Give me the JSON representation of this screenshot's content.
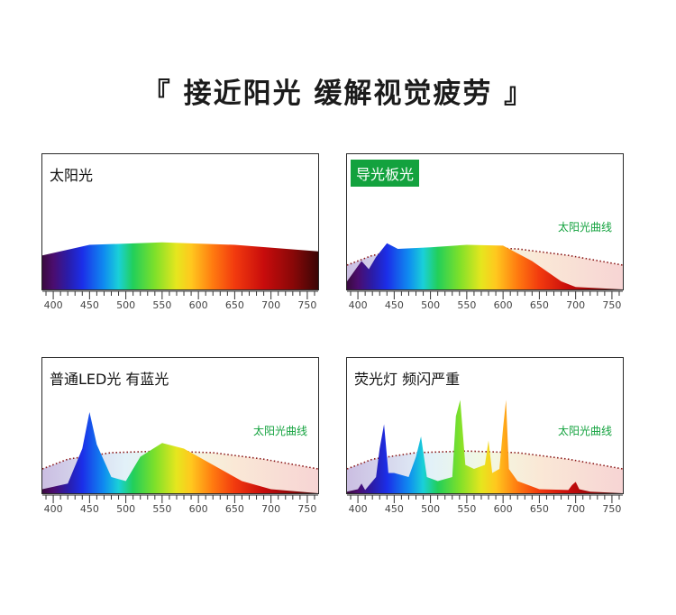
{
  "title": "『 接近阳光 缓解视觉疲劳 』",
  "curve_label": "太阳光曲线",
  "chart_data": [
    {
      "type": "area",
      "name": "sunlight",
      "label": "太阳光",
      "x_ticks": [
        400,
        450,
        500,
        550,
        600,
        650,
        700,
        750
      ],
      "xlim": [
        385,
        765
      ],
      "show_sun_curve": false,
      "peaks": [],
      "base_level": 0.42,
      "description_series": [
        {
          "name": "太阳光",
          "x": [
            385,
            450,
            550,
            650,
            765
          ],
          "values": [
            0.42,
            0.55,
            0.58,
            0.55,
            0.47
          ]
        }
      ]
    },
    {
      "type": "area",
      "name": "light-guide-panel",
      "label": "导光板光",
      "x_ticks": [
        400,
        450,
        500,
        550,
        600,
        650,
        700,
        750
      ],
      "xlim": [
        385,
        765
      ],
      "show_sun_curve": true,
      "series": [
        {
          "name": "导光板光",
          "x": [
            385,
            405,
            415,
            425,
            440,
            455,
            500,
            550,
            600,
            640,
            680,
            700,
            765
          ],
          "values": [
            0.1,
            0.35,
            0.25,
            0.4,
            0.57,
            0.5,
            0.52,
            0.55,
            0.54,
            0.35,
            0.1,
            0.03,
            0.0
          ]
        }
      ]
    },
    {
      "type": "area",
      "name": "normal-led",
      "label": "普通LED光 有蓝光",
      "x_ticks": [
        400,
        450,
        500,
        550,
        600,
        650,
        700,
        750
      ],
      "xlim": [
        385,
        765
      ],
      "show_sun_curve": true,
      "series": [
        {
          "name": "普通LED光",
          "x": [
            385,
            420,
            440,
            450,
            460,
            480,
            500,
            520,
            550,
            580,
            620,
            660,
            700,
            765
          ],
          "values": [
            0.05,
            0.12,
            0.55,
            1.0,
            0.6,
            0.2,
            0.15,
            0.45,
            0.62,
            0.55,
            0.35,
            0.15,
            0.05,
            0.0
          ]
        }
      ]
    },
    {
      "type": "area",
      "name": "fluorescent",
      "label": "荧光灯 频闪严重",
      "x_ticks": [
        400,
        450,
        500,
        550,
        600,
        650,
        700,
        750
      ],
      "xlim": [
        385,
        765
      ],
      "show_sun_curve": true,
      "series": [
        {
          "name": "荧光灯",
          "x": [
            385,
            400,
            405,
            410,
            425,
            430,
            436,
            442,
            450,
            470,
            480,
            487,
            495,
            510,
            530,
            535,
            541,
            548,
            560,
            575,
            580,
            585,
            595,
            600,
            604,
            608,
            620,
            650,
            690,
            695,
            700,
            705,
            720,
            765
          ],
          "values": [
            0.02,
            0.05,
            0.12,
            0.04,
            0.2,
            0.55,
            0.85,
            0.25,
            0.25,
            0.2,
            0.45,
            0.7,
            0.2,
            0.15,
            0.2,
            0.95,
            1.15,
            0.35,
            0.3,
            0.35,
            0.65,
            0.25,
            0.3,
            0.8,
            1.15,
            0.3,
            0.15,
            0.05,
            0.04,
            0.1,
            0.14,
            0.05,
            0.02,
            0.0
          ]
        }
      ]
    }
  ]
}
